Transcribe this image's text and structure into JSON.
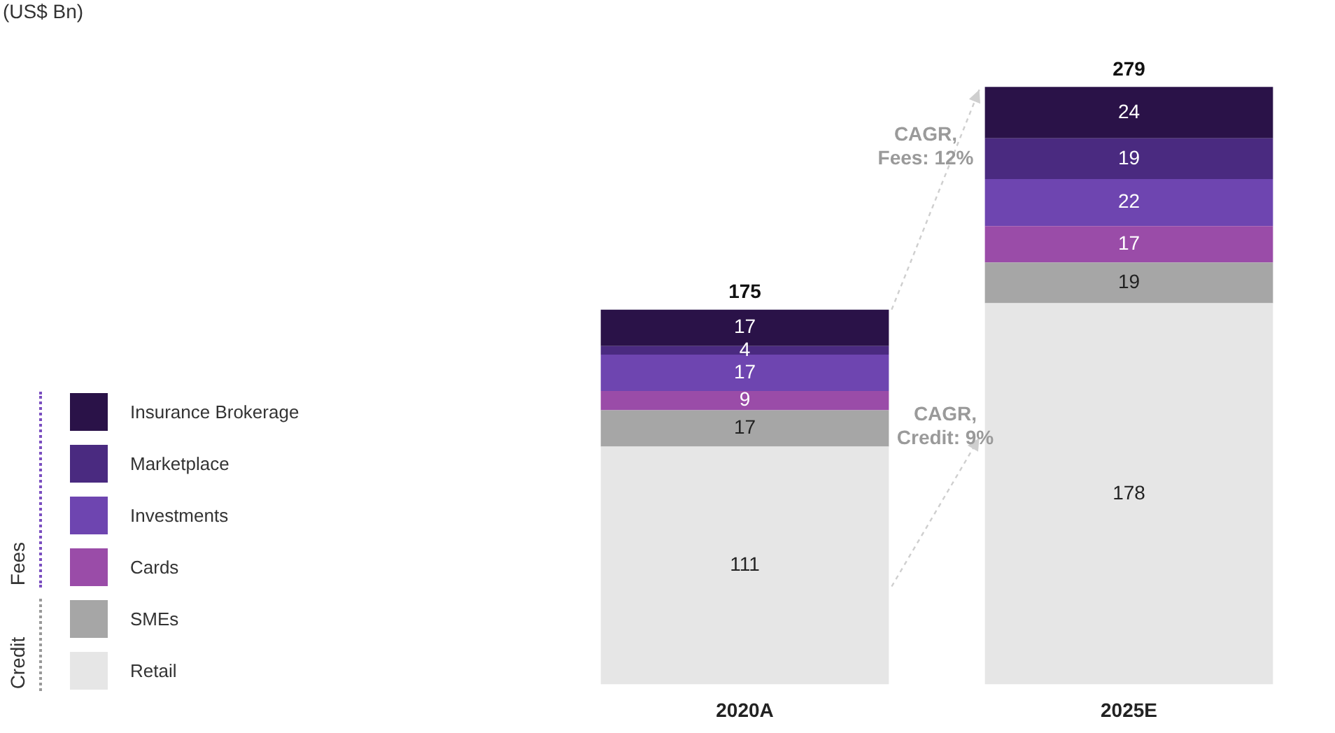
{
  "chart_data": {
    "type": "bar",
    "title": "(US$ Bn)",
    "stacked": true,
    "data_labels": true,
    "legend": "left",
    "categories": [
      "2020A",
      "2025E"
    ],
    "series": [
      {
        "name": "Retail",
        "color": "#e6e6e6",
        "values": [
          111,
          178
        ]
      },
      {
        "name": "SMEs",
        "color": "#a6a6a6",
        "values": [
          17,
          19
        ]
      },
      {
        "name": "Cards",
        "color": "#9a4ca8",
        "values": [
          9,
          17
        ]
      },
      {
        "name": "Investments",
        "color": "#6e45b0",
        "values": [
          17,
          22
        ]
      },
      {
        "name": "Marketplace",
        "color": "#4a2a80",
        "values": [
          4,
          19
        ]
      },
      {
        "name": "Insurance Brokerage",
        "color": "#2a1248",
        "values": [
          17,
          24
        ]
      }
    ],
    "totals": [
      "175",
      "279"
    ],
    "annotations": [
      "CAGR,\nFees: 12%",
      "CAGR,\nCredit: 9%",
      "Fees",
      "Credit"
    ]
  }
}
